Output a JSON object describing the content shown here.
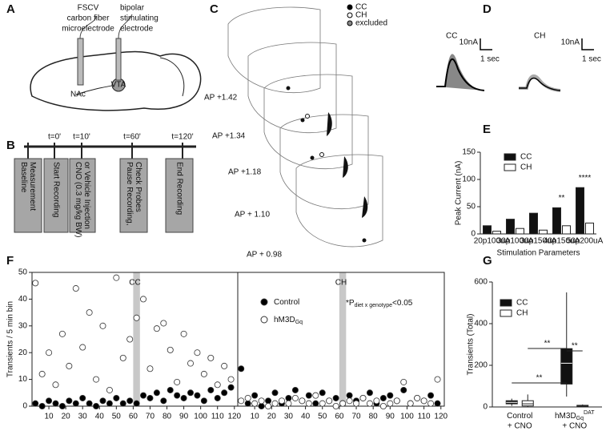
{
  "panel_letters": [
    "A",
    "B",
    "C",
    "D",
    "E",
    "F",
    "G"
  ],
  "panel_a": {
    "recording": [
      "FSCV",
      "carbon fiber",
      "microelectrode"
    ],
    "stimulating": [
      "bipolar",
      "stimulating",
      "electrode"
    ],
    "nac": "NAc",
    "vta": "VTA"
  },
  "panel_b": {
    "times": [
      "t=0'",
      "t=10'",
      "t=60'",
      "t=120'"
    ],
    "steps": [
      [
        "Baseline",
        "Measurement"
      ],
      [
        "Start Recording"
      ],
      [
        "CNO (0.3 mg/kg BW)",
        "or Vehicle Injection"
      ],
      [
        "Pause Recording,",
        "Check Probes"
      ],
      [
        "End Recording"
      ]
    ]
  },
  "panel_c": {
    "legend": [
      "CC",
      "CH",
      "excluded"
    ],
    "ap_labels": [
      "AP +1.42",
      "AP +1.34",
      "AP +1.18",
      "AP + 1.10",
      "AP + 0.98"
    ]
  },
  "panel_d": {
    "groups": [
      "CC",
      "CH"
    ],
    "scale_y": "10nA",
    "scale_x": "1 sec"
  },
  "chart_data": [
    {
      "type": "bar",
      "ylabel": "Peak Current (nA)",
      "xlabel": "Stimulation Parameters",
      "categories": [
        "20p100uA",
        "30p100uA",
        "30p150uA",
        "40p150uA",
        "50p200uA"
      ],
      "series": [
        {
          "name": "CC",
          "color": "#111111",
          "values": [
            15,
            27,
            38,
            48,
            85
          ]
        },
        {
          "name": "CH",
          "color": "#ffffff",
          "values": [
            5,
            10,
            7,
            15,
            20
          ]
        }
      ],
      "ylim": [
        0,
        150
      ],
      "yticks": [
        0,
        50,
        100,
        150
      ],
      "annotations": [
        {
          "text": "**",
          "category": "40p150uA"
        },
        {
          "text": "****",
          "category": "50p200uA"
        }
      ]
    },
    {
      "type": "scatter",
      "title": "CC",
      "ylabel": "Transients / 5 min bin",
      "xlim": [
        0,
        122
      ],
      "ylim": [
        0,
        50
      ],
      "xticks": [
        10,
        20,
        30,
        40,
        50,
        60,
        70,
        80,
        90,
        100,
        110,
        120
      ],
      "yticks": [
        0,
        10,
        20,
        30,
        40,
        50
      ],
      "shade": [
        60,
        64
      ],
      "series": [
        {
          "color": "#000000",
          "x": [
            2,
            6,
            10,
            14,
            18,
            22,
            26,
            30,
            34,
            38,
            42,
            46,
            50,
            54,
            58,
            62,
            66,
            70,
            74,
            78,
            82,
            86,
            90,
            94,
            98,
            102,
            106,
            110,
            114,
            118
          ],
          "values": [
            1,
            0,
            2,
            1,
            0,
            2,
            1,
            3,
            1,
            0,
            2,
            1,
            3,
            1,
            2,
            1,
            4,
            3,
            5,
            2,
            6,
            4,
            3,
            5,
            4,
            2,
            6,
            3,
            5,
            7
          ]
        },
        {
          "color": "#ffffff",
          "x": [
            2,
            6,
            10,
            14,
            18,
            22,
            26,
            30,
            34,
            38,
            42,
            46,
            50,
            54,
            58,
            62,
            66,
            70,
            74,
            78,
            82,
            86,
            90,
            94,
            98,
            102,
            106,
            110,
            114,
            118
          ],
          "values": [
            46,
            12,
            20,
            8,
            27,
            15,
            44,
            22,
            35,
            10,
            30,
            6,
            48,
            18,
            25,
            33,
            40,
            14,
            29,
            31,
            21,
            9,
            27,
            16,
            20,
            12,
            18,
            8,
            15,
            10
          ]
        }
      ]
    },
    {
      "type": "scatter",
      "title": "CH",
      "xlim": [
        0,
        122
      ],
      "ylim": [
        0,
        50
      ],
      "xticks": [
        10,
        20,
        30,
        40,
        50,
        60,
        70,
        80,
        90,
        100,
        110,
        120
      ],
      "shade": [
        60,
        64
      ],
      "annotation": {
        "text": "*P",
        "sub": "diet x genotype",
        "tail": "<0.05"
      },
      "series": [
        {
          "name": "Control",
          "color": "#000000",
          "x": [
            2,
            6,
            10,
            14,
            18,
            22,
            26,
            30,
            34,
            38,
            42,
            46,
            50,
            54,
            58,
            62,
            66,
            70,
            74,
            78,
            82,
            86,
            90,
            94,
            98,
            102,
            106,
            110,
            114,
            118
          ],
          "values": [
            14,
            1,
            4,
            0,
            2,
            5,
            1,
            3,
            6,
            2,
            4,
            1,
            5,
            2,
            3,
            1,
            4,
            2,
            3,
            5,
            1,
            3,
            4,
            2,
            6,
            1,
            3,
            2,
            4,
            1
          ]
        },
        {
          "name": "hM3D",
          "name_sub": "Gq",
          "color": "#ffffff",
          "x": [
            2,
            6,
            10,
            14,
            18,
            22,
            26,
            30,
            34,
            38,
            42,
            46,
            50,
            54,
            58,
            62,
            66,
            70,
            74,
            78,
            82,
            86,
            90,
            94,
            98,
            102,
            106,
            110,
            114,
            118
          ],
          "values": [
            2,
            3,
            1,
            2,
            0,
            1,
            2,
            1,
            3,
            2,
            1,
            4,
            1,
            2,
            0,
            1,
            2,
            1,
            3,
            1,
            2,
            0,
            1,
            2,
            9,
            1,
            3,
            2,
            1,
            10
          ]
        }
      ]
    },
    {
      "type": "box",
      "ylabel": "Transients (Total)",
      "categories": [
        {
          "label": "Control",
          "line2": "+ CNO"
        },
        {
          "label": "hM3D",
          "sub": "Gq",
          "sup": "DAT",
          "line2": "+ CNO"
        }
      ],
      "series": [
        {
          "name": "CC",
          "color": "#111111",
          "boxes": [
            {
              "min": 5,
              "q1": 15,
              "median": 22,
              "q3": 30,
              "max": 40
            },
            {
              "min": 50,
              "q1": 110,
              "median": 210,
              "q3": 280,
              "max": 550
            }
          ]
        },
        {
          "name": "CH",
          "color": "#ffffff",
          "boxes": [
            {
              "min": 0,
              "q1": 5,
              "median": 15,
              "q3": 30,
              "max": 60
            },
            {
              "min": 0,
              "q1": 2,
              "median": 5,
              "q3": 8,
              "max": 12
            }
          ]
        }
      ],
      "ylim": [
        0,
        600
      ],
      "yticks": [
        0,
        200,
        400,
        600
      ],
      "annotations": [
        "**",
        "**",
        "**"
      ]
    }
  ]
}
